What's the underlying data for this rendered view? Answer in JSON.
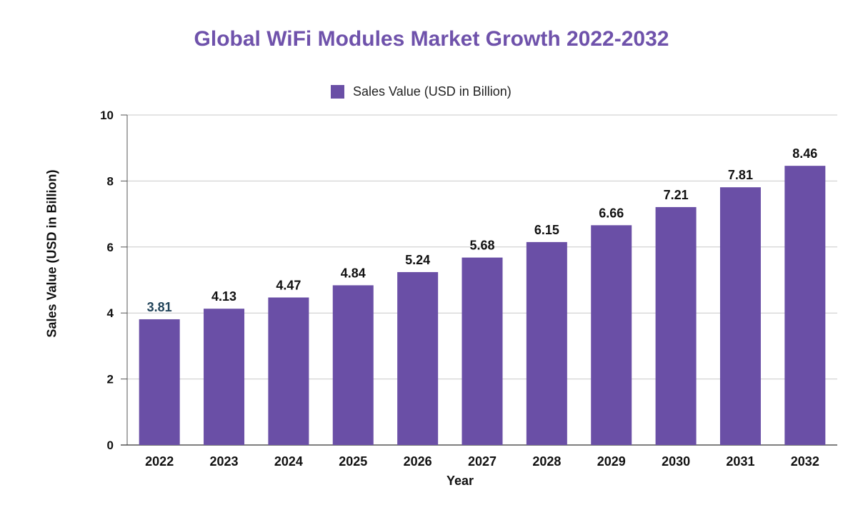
{
  "chart_data": {
    "type": "bar",
    "title": "Global WiFi Modules Market Growth 2022-2032",
    "xlabel": "Year",
    "ylabel": "Sales Value (USD in Billion)",
    "legend": {
      "position": "top-center",
      "entries": [
        "Sales Value (USD in Billion)"
      ]
    },
    "grid": true,
    "ylim": [
      0,
      10
    ],
    "yticks": [
      "0",
      "2",
      "4",
      "6",
      "8",
      "10"
    ],
    "categories": [
      "2022",
      "2023",
      "2024",
      "2025",
      "2026",
      "2027",
      "2028",
      "2029",
      "2030",
      "2031",
      "2032"
    ],
    "series": [
      {
        "name": "Sales Value (USD in Billion)",
        "values": [
          3.81,
          4.13,
          4.47,
          4.84,
          5.24,
          5.68,
          6.15,
          6.66,
          7.21,
          7.81,
          8.46
        ],
        "labels": [
          "3.81",
          "4.13",
          "4.47",
          "4.84",
          "5.24",
          "5.68",
          "6.15",
          "6.66",
          "7.21",
          "7.81",
          "8.46"
        ],
        "color": "#6a4fa6"
      }
    ],
    "colors": {
      "title": "#6f52ab",
      "bar": "#6a4fa6",
      "first_label": "#23455b",
      "label": "#111111"
    }
  }
}
